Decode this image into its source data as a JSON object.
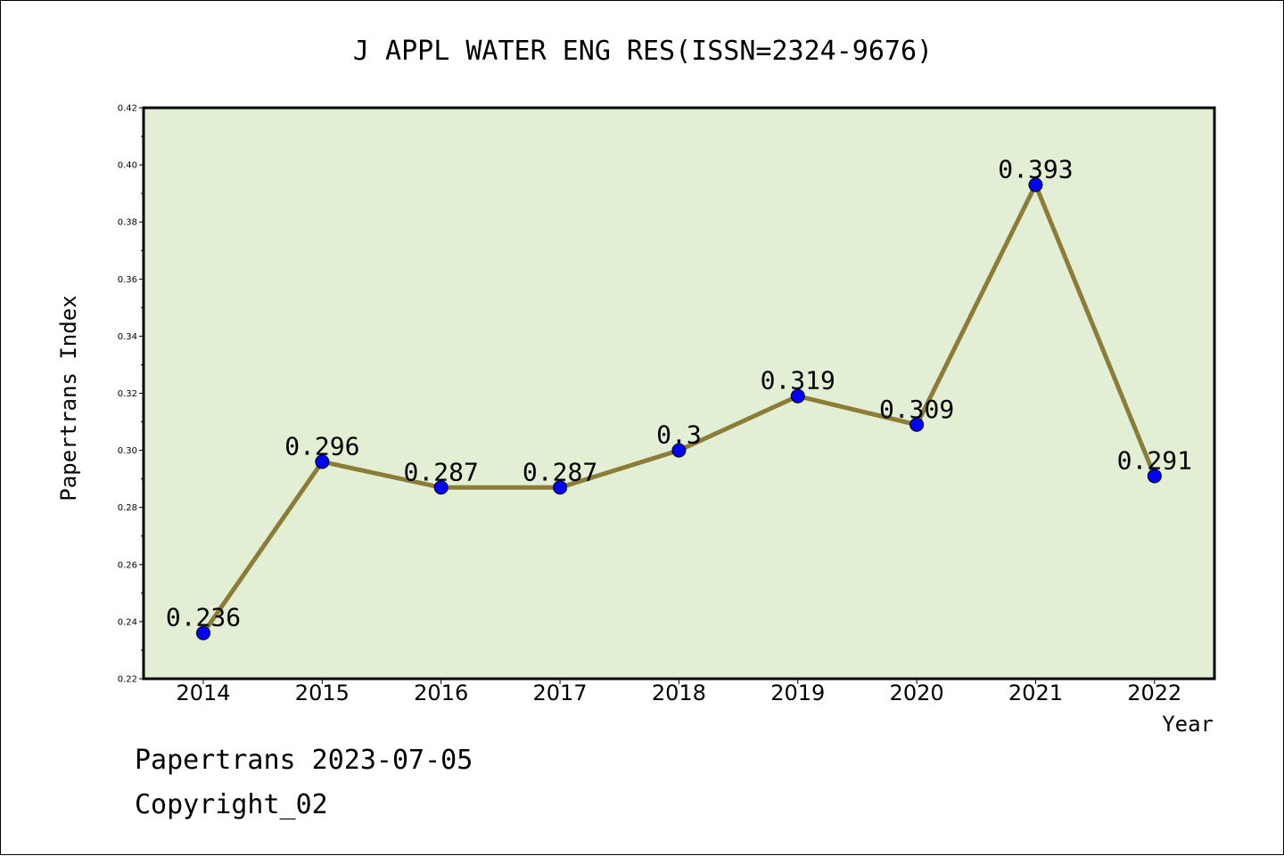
{
  "chart_data": {
    "type": "line",
    "title": "J APPL WATER ENG RES(ISSN=2324-9676)",
    "xlabel": "Year",
    "ylabel": "Papertrans Index",
    "categories": [
      "2014",
      "2015",
      "2016",
      "2017",
      "2018",
      "2019",
      "2020",
      "2021",
      "2022"
    ],
    "values": [
      0.236,
      0.296,
      0.287,
      0.287,
      0.3,
      0.319,
      0.309,
      0.393,
      0.291
    ],
    "value_labels": [
      "0.236",
      "0.296",
      "0.287",
      "0.287",
      "0.3",
      "0.319",
      "0.309",
      "0.393",
      "0.291"
    ],
    "ylim": [
      0.22,
      0.42
    ],
    "yticks": [
      "0.22",
      "0.24",
      "0.26",
      "0.28",
      "0.30",
      "0.32",
      "0.34",
      "0.36",
      "0.38",
      "0.40",
      "0.42"
    ],
    "grid": false,
    "legend": "none",
    "colors": {
      "plot_background": "#e2efd4",
      "line": "#8b7d37",
      "marker": "#0000ff"
    }
  },
  "footer": {
    "source_line": "Papertrans 2023-07-05",
    "copyright": "Copyright_02"
  }
}
